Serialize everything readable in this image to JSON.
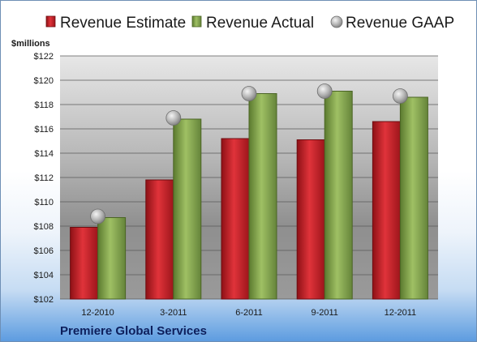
{
  "chart_data": {
    "type": "bar",
    "unit_label": "$millions",
    "company": "Premiere Global Services",
    "categories": [
      "12-2010",
      "3-2011",
      "6-2011",
      "9-2011",
      "12-2011"
    ],
    "series": [
      {
        "name": "Revenue Estimate",
        "kind": "bar",
        "color": "#c62026",
        "values": [
          107.9,
          111.8,
          115.2,
          115.1,
          116.6
        ]
      },
      {
        "name": "Revenue Actual",
        "kind": "bar",
        "color": "#8cab55",
        "values": [
          108.7,
          116.8,
          118.9,
          119.1,
          118.6
        ]
      },
      {
        "name": "Revenue GAAP",
        "kind": "marker",
        "color": "#b5b5b5",
        "values": [
          108.8,
          116.9,
          118.9,
          119.1,
          118.7
        ]
      }
    ],
    "ylim": [
      102,
      122
    ],
    "yticks": [
      "$122",
      "$120",
      "$118",
      "$116",
      "$114",
      "$112",
      "$110",
      "$108",
      "$106",
      "$104",
      "$102"
    ],
    "grid": true,
    "legend_position": "top"
  }
}
